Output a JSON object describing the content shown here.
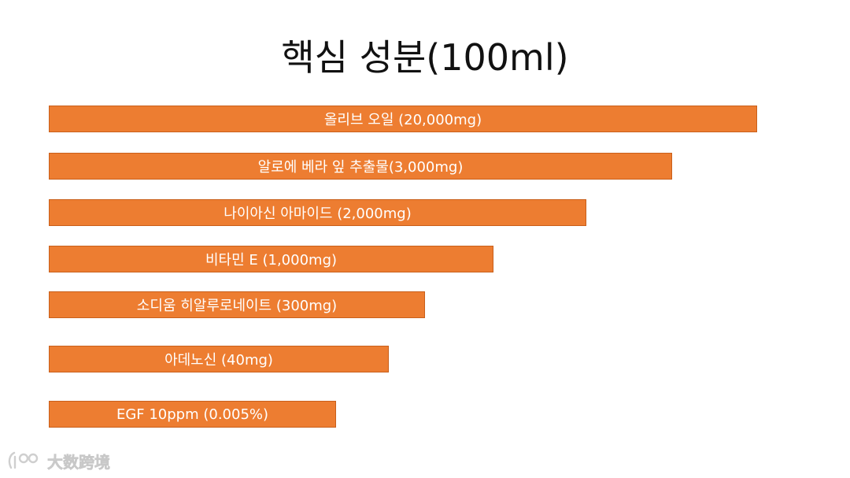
{
  "chart_data": {
    "type": "bar",
    "orientation": "horizontal",
    "title": "핵심 성분(100ml)",
    "categories": [
      "올리브 오일 (20,000mg)",
      "알로에 베라 잎 추출물(3,000mg)",
      "나이아신 아마이드 (2,000mg)",
      "비타민 E (1,000mg)",
      "소디움 히알루로네이트 (300mg)",
      "아데노신 (40mg)",
      "EGF 10ppm (0.005%)"
    ],
    "values": [
      900,
      792,
      683,
      565,
      478,
      432,
      365
    ],
    "value_scale_max": 900,
    "xlabel": "",
    "ylabel": "",
    "grid": false,
    "legend": "none",
    "bar_color": "#ED7D31",
    "bar_border_color": "#C95F1A",
    "label_color": "#FFFFFF"
  },
  "watermark": {
    "text": "大数跨境",
    "icon": "logo-icon"
  }
}
